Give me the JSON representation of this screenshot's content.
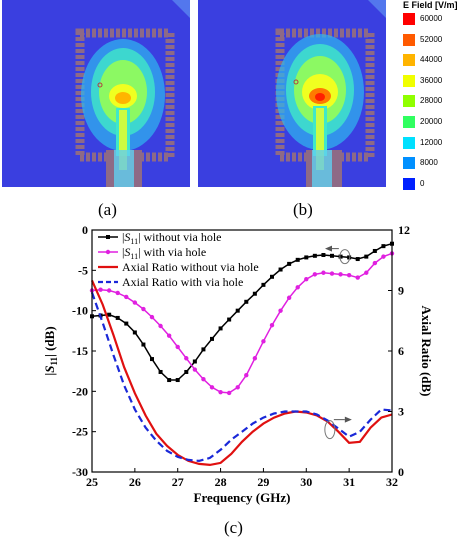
{
  "labels": {
    "a": "(a)",
    "b": "(b)",
    "c": "(c)"
  },
  "colorbar": {
    "title": "E Field [V/m]",
    "ticks": [
      "60000",
      "52000",
      "44000",
      "36000",
      "28000",
      "20000",
      "12000",
      "8000",
      "0"
    ],
    "colors": [
      "#ff0000",
      "#ff5a00",
      "#ffb400",
      "#f0ff00",
      "#90ff00",
      "#30ff60",
      "#00e0ff",
      "#0090ff",
      "#0020ff"
    ]
  },
  "field_plots": {
    "background": "#3a3fe0",
    "feed_color": "#8e6a86"
  },
  "chart_data": {
    "type": "line",
    "xlabel": "Frequency (GHz)",
    "ylabel_left": "|S11| (dB)",
    "ylabel_right": "Axial Ratio (dB)",
    "xlim": [
      25,
      32
    ],
    "ylim_left": [
      -30,
      0
    ],
    "ylim_right": [
      0,
      12
    ],
    "x_ticks": [
      "25",
      "26",
      "27",
      "28",
      "29",
      "30",
      "31",
      "32"
    ],
    "y_ticks_left": [
      "0",
      "-5",
      "-10",
      "-15",
      "-20",
      "-25",
      "-30"
    ],
    "y_ticks_right": [
      "0",
      "3",
      "6",
      "9",
      "12"
    ],
    "series": [
      {
        "name": "|S11| without via hole",
        "axis": "left",
        "color": "#000000",
        "marker": "square",
        "dash": "solid",
        "x": [
          25.0,
          25.2,
          25.4,
          25.6,
          25.8,
          26.0,
          26.2,
          26.4,
          26.6,
          26.8,
          27.0,
          27.2,
          27.4,
          27.6,
          27.8,
          28.0,
          28.2,
          28.4,
          28.6,
          28.8,
          29.0,
          29.2,
          29.4,
          29.6,
          29.8,
          30.0,
          30.2,
          30.4,
          30.6,
          30.8,
          31.0,
          31.2,
          31.4,
          31.6,
          31.8,
          32.0
        ],
        "y": [
          -10.7,
          -10.6,
          -10.5,
          -10.9,
          -11.6,
          -12.7,
          -14.2,
          -16.0,
          -17.6,
          -18.6,
          -18.6,
          -17.6,
          -16.3,
          -14.8,
          -13.5,
          -12.2,
          -11.1,
          -10.0,
          -8.9,
          -7.9,
          -6.8,
          -5.8,
          -4.9,
          -4.2,
          -3.7,
          -3.4,
          -3.2,
          -3.1,
          -3.2,
          -3.3,
          -3.4,
          -3.6,
          -3.3,
          -2.6,
          -2.0,
          -1.7
        ]
      },
      {
        "name": "|S11| with via hole",
        "axis": "left",
        "color": "#e020e0",
        "marker": "circle",
        "dash": "solid",
        "x": [
          25.0,
          25.2,
          25.4,
          25.6,
          25.8,
          26.0,
          26.2,
          26.4,
          26.6,
          26.8,
          27.0,
          27.2,
          27.4,
          27.6,
          27.8,
          28.0,
          28.2,
          28.4,
          28.6,
          28.8,
          29.0,
          29.2,
          29.4,
          29.6,
          29.8,
          30.0,
          30.2,
          30.4,
          30.6,
          30.8,
          31.0,
          31.2,
          31.4,
          31.6,
          31.8,
          32.0
        ],
        "y": [
          -7.5,
          -7.4,
          -7.5,
          -7.8,
          -8.3,
          -9.0,
          -9.8,
          -10.8,
          -11.9,
          -13.1,
          -14.5,
          -15.9,
          -17.3,
          -18.5,
          -19.5,
          -20.1,
          -20.2,
          -19.5,
          -18.0,
          -15.9,
          -13.8,
          -11.8,
          -10.0,
          -8.4,
          -7.1,
          -6.1,
          -5.5,
          -5.3,
          -5.4,
          -5.5,
          -5.6,
          -5.9,
          -5.3,
          -4.1,
          -3.3,
          -2.9
        ]
      },
      {
        "name": "Axial Ratio without via hole",
        "axis": "right",
        "color": "#e01010",
        "marker": "none",
        "dash": "solid",
        "x": [
          25.0,
          25.25,
          25.5,
          25.75,
          26.0,
          26.25,
          26.5,
          26.75,
          27.0,
          27.25,
          27.5,
          27.75,
          28.0,
          28.25,
          28.5,
          28.75,
          29.0,
          29.25,
          29.5,
          29.75,
          30.0,
          30.25,
          30.5,
          30.75,
          31.0,
          31.25,
          31.5,
          31.75,
          32.0
        ],
        "y": [
          9.5,
          8.3,
          6.8,
          5.2,
          3.9,
          2.8,
          1.9,
          1.3,
          0.85,
          0.55,
          0.4,
          0.35,
          0.45,
          0.9,
          1.5,
          2.0,
          2.4,
          2.7,
          2.9,
          3.0,
          2.95,
          2.8,
          2.5,
          2.0,
          1.45,
          1.5,
          2.2,
          2.7,
          2.85
        ]
      },
      {
        "name": "Axial Ratio with via hole",
        "axis": "right",
        "color": "#1a28d8",
        "marker": "none",
        "dash": "dashed",
        "x": [
          25.0,
          25.25,
          25.5,
          25.75,
          26.0,
          26.25,
          26.5,
          26.75,
          27.0,
          27.25,
          27.5,
          27.75,
          28.0,
          28.25,
          28.5,
          28.75,
          29.0,
          29.25,
          29.5,
          29.75,
          30.0,
          30.25,
          30.5,
          30.75,
          31.0,
          31.25,
          31.5,
          31.75,
          32.0
        ],
        "y": [
          8.9,
          7.4,
          5.8,
          4.3,
          3.1,
          2.2,
          1.55,
          1.05,
          0.75,
          0.6,
          0.55,
          0.7,
          1.1,
          1.6,
          2.0,
          2.4,
          2.7,
          2.9,
          3.0,
          3.0,
          3.0,
          2.85,
          2.55,
          2.15,
          1.75,
          2.0,
          2.6,
          3.1,
          3.05
        ]
      }
    ]
  }
}
